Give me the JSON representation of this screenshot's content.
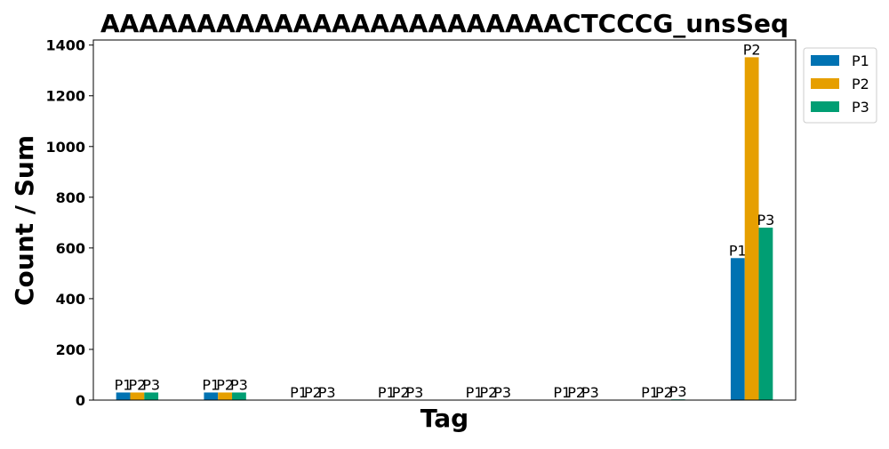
{
  "chart_data": {
    "type": "bar",
    "title": "AAAAAAAAAAAAAAAAAAAAAAAACTCCCG_unsSeq",
    "xlabel": "Tag",
    "ylabel": "Count / Sum",
    "ylim": [
      0,
      1420
    ],
    "yticks": [
      0,
      200,
      400,
      600,
      800,
      1000,
      1200,
      1400
    ],
    "categories": [
      "",
      "",
      "",
      "",
      "",
      "",
      "",
      ""
    ],
    "series": [
      {
        "name": "P1",
        "color": "#0072B2",
        "values": [
          30,
          30,
          0,
          0,
          0,
          0,
          0,
          560
        ]
      },
      {
        "name": "P2",
        "color": "#E69F00",
        "values": [
          30,
          30,
          0,
          0,
          0,
          0,
          0,
          1352
        ]
      },
      {
        "name": "P3",
        "color": "#009E73",
        "values": [
          30,
          30,
          0,
          0,
          0,
          0,
          3,
          680
        ]
      }
    ],
    "legend": {
      "position": "upper-right-outside",
      "entries": [
        "P1",
        "P2",
        "P3"
      ]
    },
    "grid": false
  }
}
